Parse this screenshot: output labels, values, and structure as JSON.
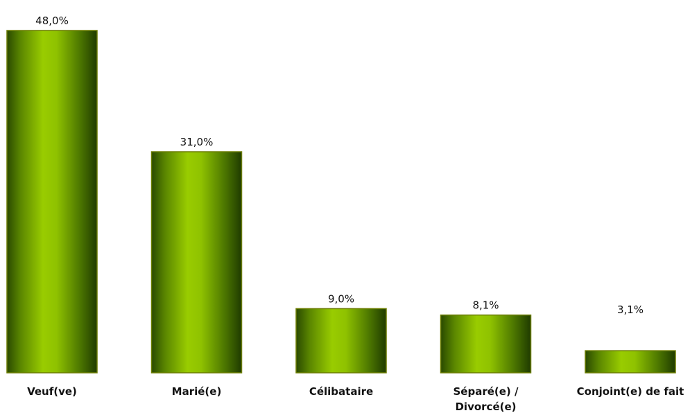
{
  "chart_data": {
    "type": "bar",
    "categories": [
      [
        "Veuf(ve)"
      ],
      [
        "Marié(e)"
      ],
      [
        "Célibataire"
      ],
      [
        "Séparé(e) /",
        "Divorcé(e)"
      ],
      [
        "Conjoint(e) de fait"
      ]
    ],
    "values": [
      48.0,
      31.0,
      9.0,
      8.1,
      3.1
    ],
    "value_labels": [
      "48,0%",
      "31,0%",
      "9,0%",
      "8,1%",
      "3,1%"
    ],
    "unit": "%",
    "ylim": [
      0,
      48.0
    ],
    "grid": false,
    "legend": "none",
    "colors": {
      "bar_edge": "#2a4a00",
      "bar_center": "#99cc00",
      "bar_mid": "#7aa800",
      "bar_dark": "#1f3b00",
      "border": "#6b7d00"
    }
  }
}
